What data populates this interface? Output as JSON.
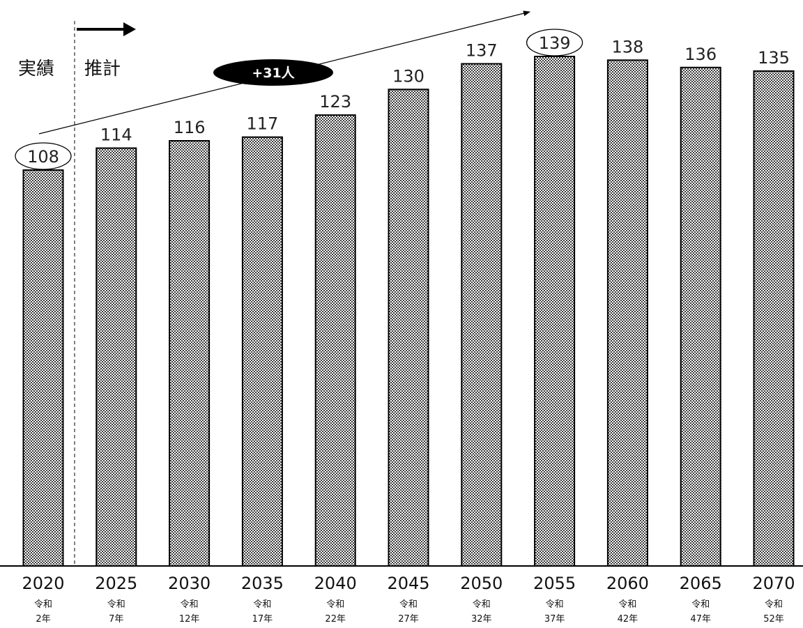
{
  "chart_data": {
    "type": "bar",
    "categories": [
      "2020",
      "2025",
      "2030",
      "2035",
      "2040",
      "2045",
      "2050",
      "2055",
      "2060",
      "2065",
      "2070"
    ],
    "era_labels": [
      "令和",
      "令和",
      "令和",
      "令和",
      "令和",
      "令和",
      "令和",
      "令和",
      "令和",
      "令和",
      "令和"
    ],
    "era_years": [
      "2年",
      "7年",
      "12年",
      "17年",
      "22年",
      "27年",
      "32年",
      "37年",
      "42年",
      "47年",
      "52年"
    ],
    "values": [
      108,
      114,
      116,
      117,
      123,
      130,
      137,
      139,
      138,
      136,
      135
    ],
    "ylim": [
      0,
      139
    ],
    "circled_indices": [
      0,
      7
    ],
    "grid": false,
    "legend": "none",
    "annotations": {
      "actual_label": "実績",
      "projection_label": "推計",
      "increase_label": "+31人"
    }
  }
}
